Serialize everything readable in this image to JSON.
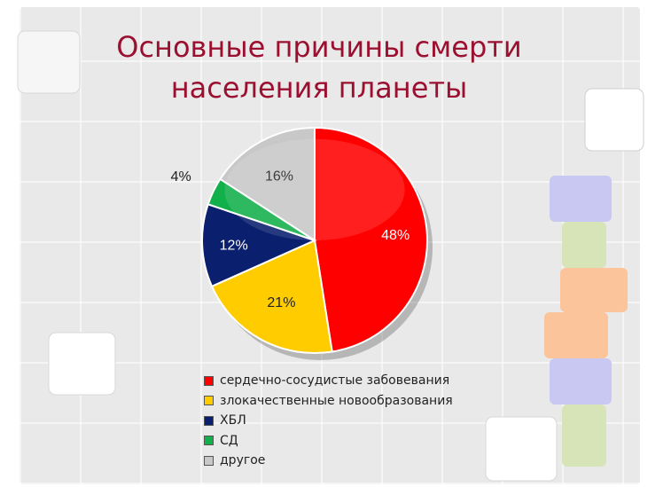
{
  "title_lines": [
    "Основные причины смерти",
    "населения планеты"
  ],
  "chart_data": {
    "type": "pie",
    "categories": [
      "сердечно-сосудистые забовевания",
      "злокачественные новообразования",
      "ХБЛ",
      "СД",
      "другое"
    ],
    "values": [
      48,
      21,
      12,
      4,
      16
    ],
    "labels": [
      "48%",
      "21%",
      "12%",
      "4%",
      "16%"
    ],
    "colors": [
      "#ff0000",
      "#ffcc00",
      "#0a1f6e",
      "#12b04a",
      "#c8c8c8"
    ],
    "legend_position": "bottom"
  },
  "theme": {
    "title_color": "#9b1030",
    "background": "#e9e9e9"
  }
}
